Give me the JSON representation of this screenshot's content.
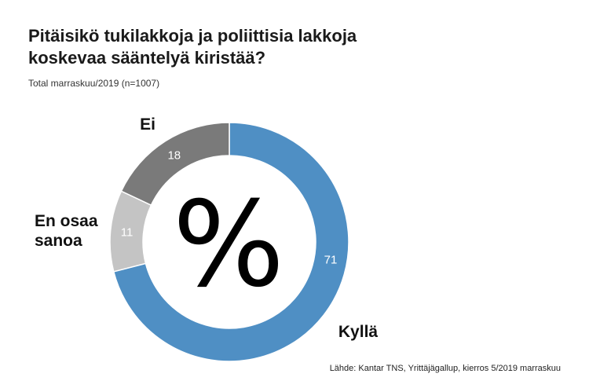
{
  "chart_data": {
    "type": "pie",
    "title": "Pitäisikö tukilakkoja ja poliittisia lakkoja koskevaa sääntelyä kiristää?",
    "subtitle": "Total marraskuu/2019 (n=1007)",
    "center_symbol": "%",
    "categories": [
      "Kyllä",
      "En osaa sanoa",
      "Ei"
    ],
    "category_lines": [
      [
        "Kyllä"
      ],
      [
        "En osaa",
        "sanoa"
      ],
      [
        "Ei"
      ]
    ],
    "values": [
      71,
      11,
      18
    ],
    "colors": [
      "#4f8fc4",
      "#c4c4c4",
      "#7a7a7a"
    ],
    "source": "Lähde: Kantar TNS, Yrittäjägallup, kierros 5/2019 marraskuu"
  }
}
